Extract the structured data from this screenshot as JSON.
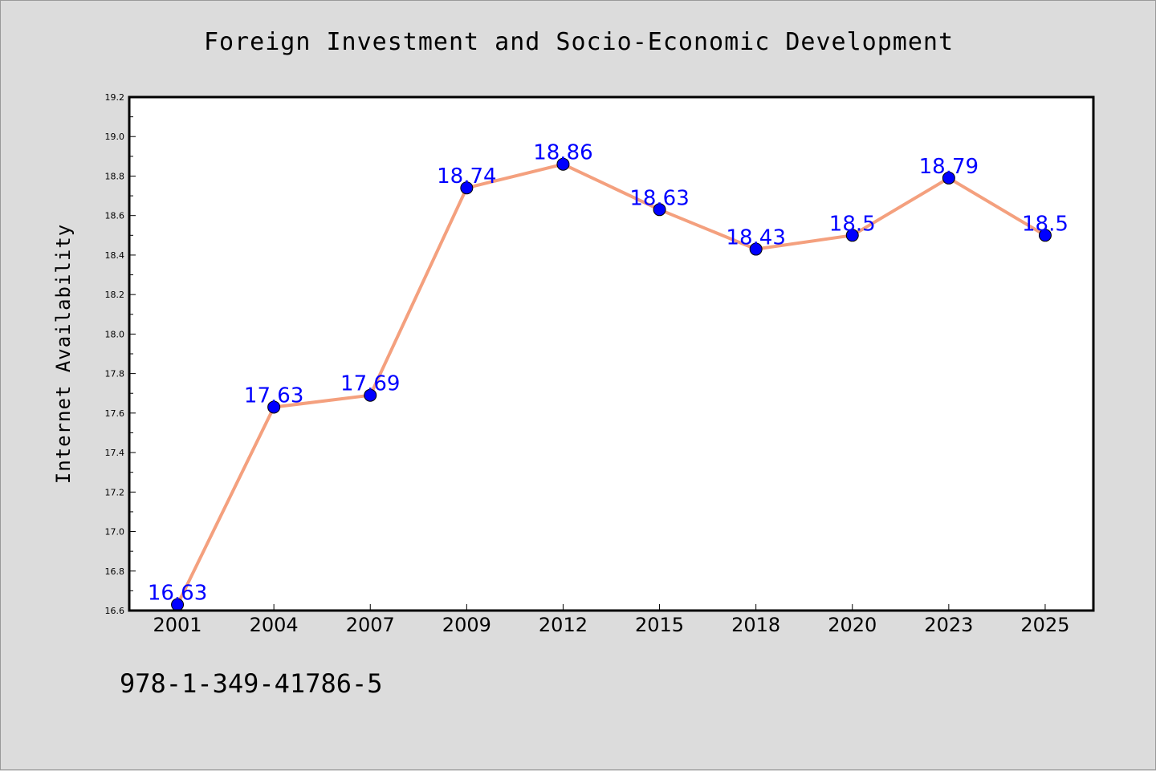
{
  "chart_data": {
    "type": "line",
    "title": "Foreign Investment and Socio-Economic Development",
    "xlabel": "",
    "ylabel": "Internet Availability",
    "categories": [
      "2001",
      "2004",
      "2007",
      "2009",
      "2012",
      "2015",
      "2018",
      "2020",
      "2023",
      "2025"
    ],
    "values": [
      16.63,
      17.63,
      17.69,
      18.74,
      18.86,
      18.63,
      18.43,
      18.5,
      18.79,
      18.5
    ],
    "data_labels": [
      "16.63",
      "17.63",
      "17.69",
      "18.74",
      "18.86",
      "18.63",
      "18.43",
      "18.5",
      "18.79",
      "18.5"
    ],
    "ylim": [
      16.6,
      19.2
    ],
    "yticks": [
      "16.6",
      "16.8",
      "17.0",
      "17.2",
      "17.4",
      "17.6",
      "17.8",
      "18.0",
      "18.2",
      "18.4",
      "18.6",
      "18.8",
      "19.0",
      "19.2"
    ],
    "grid": false,
    "line_color": "#f4a07e",
    "marker_color": "#0000ff",
    "label_color": "#0000ff",
    "plot_background": "#ffffff",
    "figure_background": "#dcdcdc"
  },
  "footer": {
    "isbn": "978-1-349-41786-5"
  }
}
